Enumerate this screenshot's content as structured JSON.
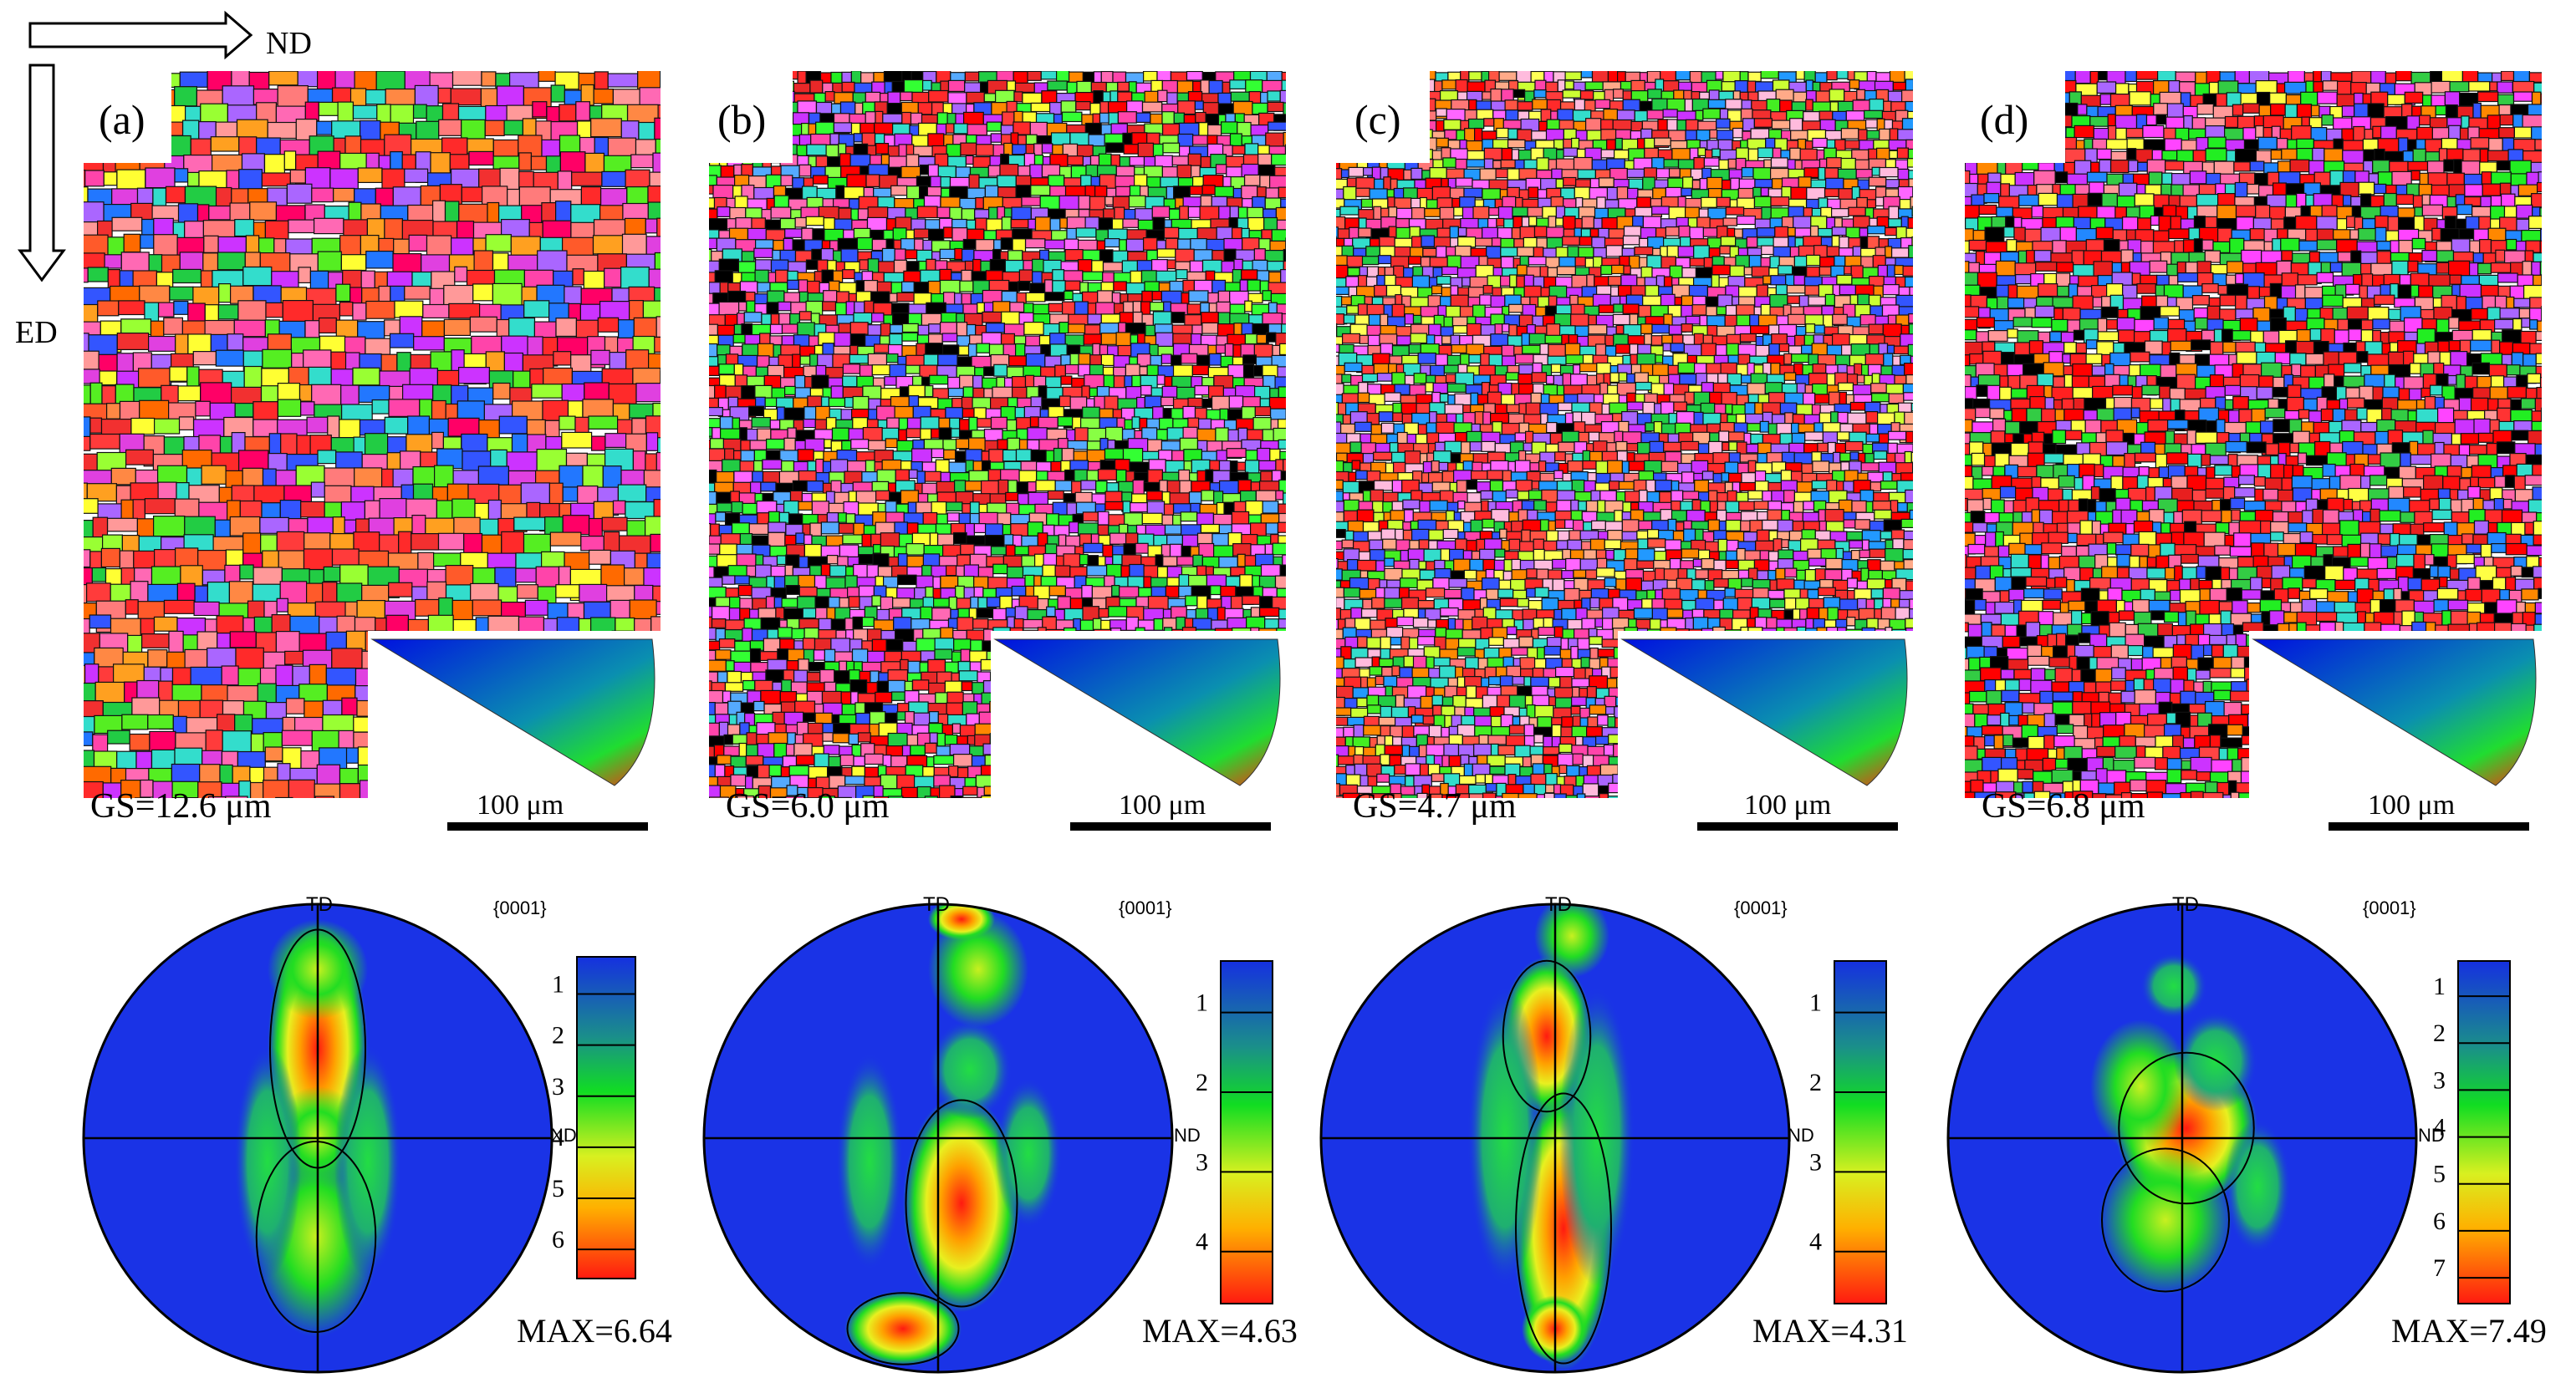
{
  "figure": {
    "axes_indicator": {
      "horizontal_label": "ND",
      "vertical_label": "ED"
    },
    "panels": [
      {
        "id": "a",
        "label": "(a)",
        "grain_size": "GS=12.6 μm",
        "scale_bar": "100 μm",
        "pole_figure": {
          "plane": "{0001}",
          "top_label": "TD",
          "right_label": "ND",
          "max": "MAX=6.64",
          "colorbar_ticks": [
            "1",
            "2",
            "3",
            "4",
            "5",
            "6"
          ]
        }
      },
      {
        "id": "b",
        "label": "(b)",
        "grain_size": "GS=6.0 μm",
        "scale_bar": "100 μm",
        "pole_figure": {
          "plane": "{0001}",
          "top_label": "TD",
          "right_label": "ND",
          "max": "MAX=4.63",
          "colorbar_ticks": [
            "1",
            "2",
            "3",
            "4"
          ]
        }
      },
      {
        "id": "c",
        "label": "(c)",
        "grain_size": "GS=4.7 μm",
        "scale_bar": "100 μm",
        "pole_figure": {
          "plane": "{0001}",
          "top_label": "TD",
          "right_label": "ND",
          "max": "MAX=4.31",
          "colorbar_ticks": [
            "1",
            "2",
            "3",
            "4"
          ]
        }
      },
      {
        "id": "d",
        "label": "(d)",
        "grain_size": "GS=6.8 μm",
        "scale_bar": "100 μm",
        "pole_figure": {
          "plane": "{0001}",
          "top_label": "TD",
          "right_label": "ND",
          "max": "MAX=7.49",
          "colorbar_ticks": [
            "1",
            "2",
            "3",
            "4",
            "5",
            "6",
            "7"
          ]
        }
      }
    ],
    "colors": {
      "pf_background": "#1a33e6",
      "contour": "#000000",
      "text": "#000000"
    }
  }
}
